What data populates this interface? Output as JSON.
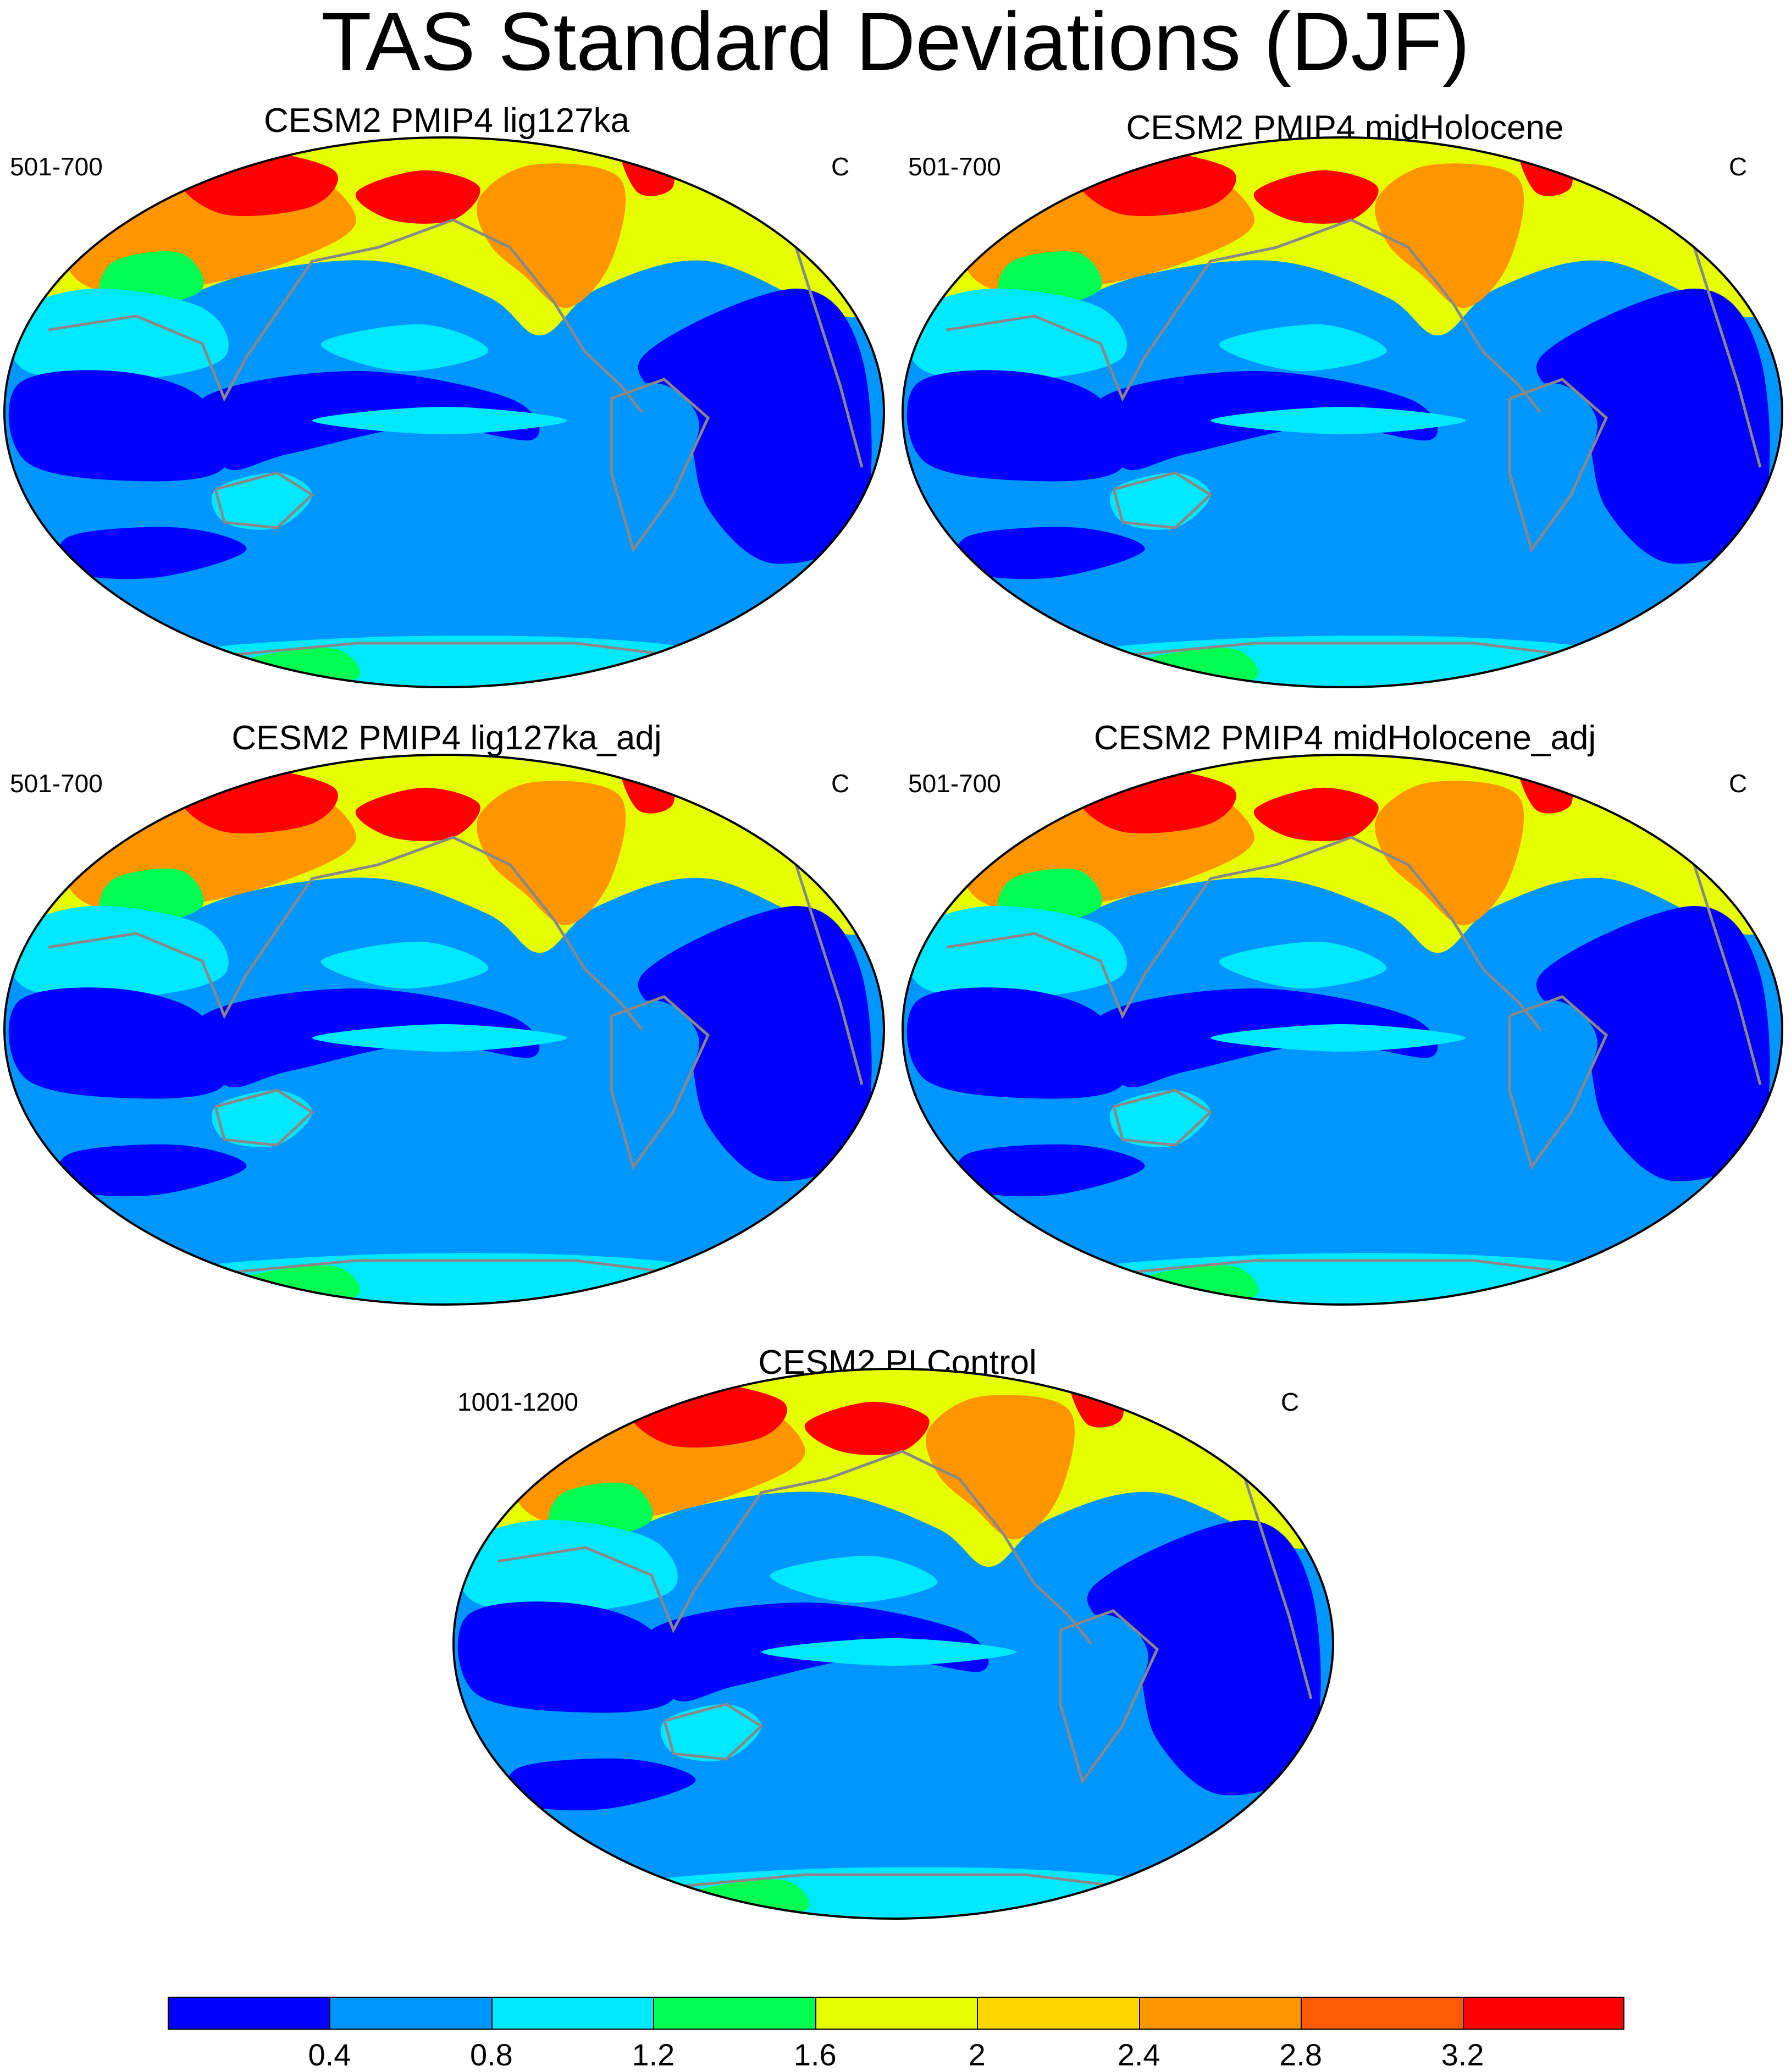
{
  "figure": {
    "title": "TAS Standard Deviations (DJF)"
  },
  "panels": [
    {
      "title": "CESM2 PMIP4 lig127ka",
      "left_label": "501-700",
      "right_label": "C"
    },
    {
      "title": "CESM2 PMIP4 midHolocene",
      "left_label": "501-700",
      "right_label": "C"
    },
    {
      "title": "CESM2 PMIP4 lig127ka_adj",
      "left_label": "501-700",
      "right_label": "C"
    },
    {
      "title": "CESM2 PMIP4 midHolocene_adj",
      "left_label": "501-700",
      "right_label": "C"
    },
    {
      "title": "CESM2 PI Control",
      "left_label": "1001-1200",
      "right_label": "C"
    }
  ],
  "colorbar": {
    "colors": [
      "#0000ff",
      "#0096ff",
      "#00e8ff",
      "#00ff50",
      "#e6ff00",
      "#ffd700",
      "#ff9600",
      "#ff5a00",
      "#ff0000"
    ],
    "labels": [
      "0.4",
      "0.8",
      "1.2",
      "1.6",
      "2",
      "2.4",
      "2.8",
      "3.2"
    ]
  },
  "map_style": {
    "ocean_base": "#0096ff",
    "coastline": "#888888",
    "projection": "Winkel-Tripel style, Pacific-centered"
  }
}
